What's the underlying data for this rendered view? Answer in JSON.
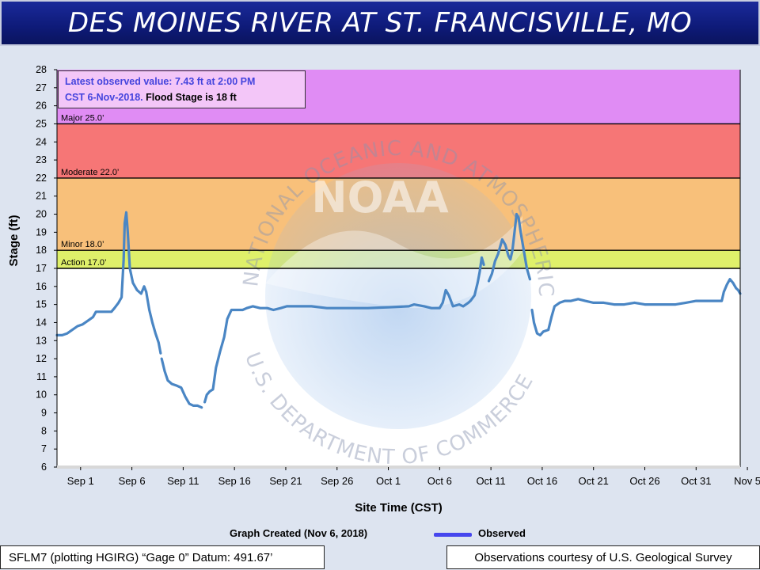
{
  "header": {
    "title": "DES MOINES RIVER AT ST. FRANCISVILLE, MO"
  },
  "latest": {
    "line1": "Latest observed value: 7.43 ft at 2:00 PM",
    "line2_blue": "CST 6-Nov-2018.",
    "line2_black": " Flood Stage is 18 ft"
  },
  "footer": {
    "created": "Graph Created (Nov 6, 2018)",
    "legend_label": "Observed",
    "datum": "SFLM7 (plotting HGIRG) “Gage 0” Datum: 491.67’",
    "courtesy": "Observations courtesy of U.S. Geological Survey"
  },
  "watermark": {
    "text_top": "NATIONAL OCEANIC AND ATMOSPHERIC ADMINISTRATION",
    "text_bottom": "U.S. DEPARTMENT OF COMMERCE",
    "logo": "NOAA"
  },
  "colors": {
    "major": "#e08cf4",
    "moderate": "#f67676",
    "minor": "#f8c07a",
    "action": "#dff06a",
    "line": "#4a86c4",
    "plot_bg": "#ffffff"
  },
  "chart_data": {
    "type": "line",
    "title": "DES MOINES RIVER AT ST. FRANCISVILLE, MO",
    "xlabel": "Site Time (CST)",
    "ylabel": "Stage (ft)",
    "ylim": [
      6,
      28
    ],
    "xlim": [
      -2.3,
      64.3
    ],
    "grid": false,
    "legend": "bottom-center",
    "x_ticks": [
      {
        "x": 0,
        "label": "Sep 1"
      },
      {
        "x": 5,
        "label": "Sep 6"
      },
      {
        "x": 10,
        "label": "Sep 11"
      },
      {
        "x": 15,
        "label": "Sep 16"
      },
      {
        "x": 20,
        "label": "Sep 21"
      },
      {
        "x": 25,
        "label": "Sep 26"
      },
      {
        "x": 30,
        "label": "Oct 1"
      },
      {
        "x": 35,
        "label": "Oct 6"
      },
      {
        "x": 40,
        "label": "Oct 11"
      },
      {
        "x": 45,
        "label": "Oct 16"
      },
      {
        "x": 50,
        "label": "Oct 21"
      },
      {
        "x": 55,
        "label": "Oct 26"
      },
      {
        "x": 60,
        "label": "Oct 31"
      },
      {
        "x": 65,
        "label": "Nov 5"
      }
    ],
    "y_ticks": [
      6,
      7,
      8,
      9,
      10,
      11,
      12,
      13,
      14,
      15,
      16,
      17,
      18,
      19,
      20,
      21,
      22,
      23,
      24,
      25,
      26,
      27,
      28
    ],
    "flood_categories": [
      {
        "name": "Major",
        "label": "Major 25.0’",
        "from": 25,
        "to": 28
      },
      {
        "name": "Moderate",
        "label": "Moderate 22.0’",
        "from": 22,
        "to": 25
      },
      {
        "name": "Minor",
        "label": "Minor 18.0’",
        "from": 18,
        "to": 22
      },
      {
        "name": "Action",
        "label": "Action 17.0’",
        "from": 17,
        "to": 18
      }
    ],
    "series": [
      {
        "name": "Observed",
        "segments": [
          [
            [
              -2.3,
              13.3
            ],
            [
              -1.8,
              13.3
            ],
            [
              -1.3,
              13.4
            ],
            [
              -0.8,
              13.6
            ],
            [
              -0.3,
              13.8
            ],
            [
              0.2,
              13.9
            ],
            [
              0.7,
              14.1
            ],
            [
              1.2,
              14.3
            ],
            [
              1.5,
              14.6
            ],
            [
              2.0,
              14.6
            ],
            [
              2.5,
              14.6
            ],
            [
              3.0,
              14.6
            ],
            [
              3.3,
              14.8
            ],
            [
              3.7,
              15.1
            ],
            [
              4.0,
              15.4
            ],
            [
              4.2,
              17.5
            ],
            [
              4.3,
              19.5
            ],
            [
              4.45,
              20.1
            ],
            [
              4.6,
              19.0
            ],
            [
              4.8,
              17.0
            ],
            [
              5.1,
              16.2
            ],
            [
              5.5,
              15.8
            ],
            [
              5.9,
              15.6
            ],
            [
              6.2,
              16.0
            ],
            [
              6.4,
              15.7
            ],
            [
              6.7,
              14.7
            ],
            [
              7.0,
              14.0
            ],
            [
              7.3,
              13.4
            ],
            [
              7.6,
              12.9
            ],
            [
              7.8,
              12.3
            ]
          ],
          [
            [
              7.9,
              12.0
            ],
            [
              8.2,
              11.3
            ],
            [
              8.5,
              10.8
            ],
            [
              8.9,
              10.6
            ],
            [
              9.4,
              10.5
            ],
            [
              9.8,
              10.4
            ],
            [
              10.2,
              9.9
            ],
            [
              10.6,
              9.5
            ],
            [
              11.0,
              9.4
            ],
            [
              11.4,
              9.4
            ],
            [
              11.8,
              9.3
            ]
          ],
          [
            [
              12.1,
              9.6
            ],
            [
              12.3,
              10.0
            ],
            [
              12.6,
              10.2
            ],
            [
              12.9,
              10.3
            ],
            [
              13.2,
              11.5
            ],
            [
              13.6,
              12.4
            ],
            [
              14.0,
              13.2
            ],
            [
              14.3,
              14.2
            ],
            [
              14.7,
              14.7
            ],
            [
              15.2,
              14.7
            ],
            [
              15.8,
              14.7
            ],
            [
              16.2,
              14.8
            ],
            [
              16.8,
              14.9
            ],
            [
              17.5,
              14.8
            ],
            [
              18.2,
              14.8
            ],
            [
              18.8,
              14.7
            ],
            [
              19.5,
              14.8
            ],
            [
              20.1,
              14.9
            ],
            [
              21.0,
              14.9
            ],
            [
              22.5,
              14.9
            ],
            [
              24.0,
              14.8
            ],
            [
              26.0,
              14.8
            ],
            [
              28.0,
              14.8
            ],
            [
              30.0,
              14.85
            ],
            [
              32.0,
              14.9
            ],
            [
              32.5,
              15.0
            ],
            [
              33.5,
              14.9
            ],
            [
              34.2,
              14.8
            ],
            [
              35.0,
              14.8
            ],
            [
              35.3,
              15.1
            ],
            [
              35.6,
              15.8
            ],
            [
              35.9,
              15.5
            ],
            [
              36.3,
              14.9
            ],
            [
              36.9,
              15.0
            ],
            [
              37.3,
              14.9
            ],
            [
              37.8,
              15.1
            ],
            [
              38.0,
              15.2
            ],
            [
              38.4,
              15.5
            ],
            [
              38.7,
              16.2
            ],
            [
              38.9,
              16.8
            ],
            [
              39.1,
              17.6
            ],
            [
              39.3,
              17.2
            ]
          ],
          [
            [
              39.8,
              16.3
            ],
            [
              40.1,
              16.7
            ],
            [
              40.4,
              17.4
            ],
            [
              40.7,
              17.8
            ],
            [
              41.1,
              18.6
            ],
            [
              41.4,
              18.3
            ],
            [
              41.7,
              17.7
            ],
            [
              41.9,
              17.5
            ],
            [
              42.1,
              18.0
            ],
            [
              42.3,
              19.0
            ],
            [
              42.5,
              20.0
            ],
            [
              42.7,
              19.8
            ],
            [
              42.9,
              19.0
            ],
            [
              43.2,
              18.0
            ],
            [
              43.5,
              17.0
            ],
            [
              43.7,
              16.6
            ],
            [
              43.8,
              16.4
            ]
          ],
          [
            [
              44.0,
              14.7
            ],
            [
              44.2,
              14.0
            ],
            [
              44.5,
              13.4
            ],
            [
              44.8,
              13.3
            ],
            [
              45.1,
              13.5
            ],
            [
              45.6,
              13.6
            ],
            [
              45.9,
              14.3
            ],
            [
              46.2,
              14.9
            ],
            [
              46.7,
              15.1
            ],
            [
              47.2,
              15.2
            ],
            [
              47.8,
              15.2
            ],
            [
              48.5,
              15.3
            ],
            [
              49.2,
              15.2
            ],
            [
              50.0,
              15.1
            ],
            [
              51.0,
              15.1
            ],
            [
              52.0,
              15.0
            ],
            [
              53.0,
              15.0
            ],
            [
              54.0,
              15.1
            ],
            [
              55.0,
              15.0
            ],
            [
              56.0,
              15.0
            ],
            [
              57.0,
              15.0
            ],
            [
              58.0,
              15.0
            ],
            [
              59.0,
              15.1
            ],
            [
              60.0,
              15.2
            ],
            [
              61.0,
              15.2
            ],
            [
              62.0,
              15.2
            ],
            [
              62.5,
              15.2
            ],
            [
              62.7,
              15.7
            ],
            [
              63.0,
              16.1
            ],
            [
              63.3,
              16.4
            ],
            [
              63.6,
              16.2
            ],
            [
              63.9,
              15.9
            ],
            [
              64.1,
              15.8
            ],
            [
              64.3,
              15.6
            ]
          ]
        ]
      }
    ]
  }
}
